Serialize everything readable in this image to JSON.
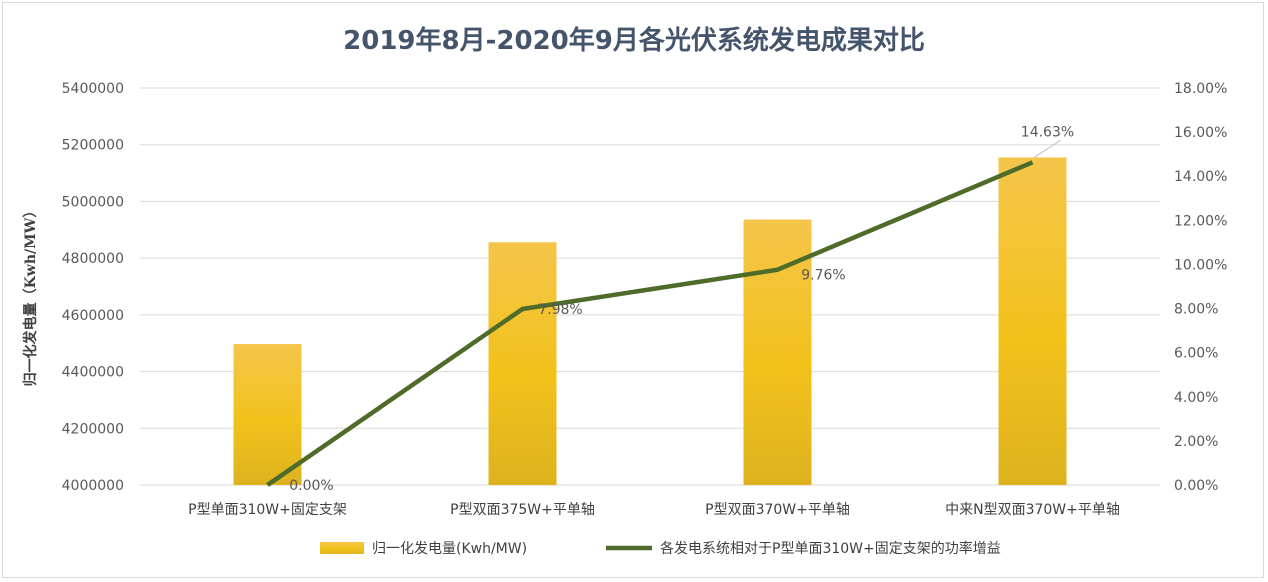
{
  "chart_data": {
    "type": "bar",
    "title": "2019年8月-2020年9月各光伏系统发电成果对比",
    "ylabel": "归一化发电量（Kwh/MW）",
    "y2label": "",
    "categories": [
      "P型单面310W+固定支架",
      "P型双面375W+平单轴",
      "P型双面370W+平单轴",
      "中来N型双面370W+平单轴"
    ],
    "ylim": [
      4000000,
      5400000
    ],
    "yticks": [
      "4000000",
      "4200000",
      "4400000",
      "4600000",
      "4800000",
      "5000000",
      "5200000",
      "5400000"
    ],
    "y2lim": [
      0,
      18
    ],
    "y2ticks": [
      "0.00%",
      "2.00%",
      "4.00%",
      "6.00%",
      "8.00%",
      "10.00%",
      "12.00%",
      "14.00%",
      "16.00%",
      "18.00%"
    ],
    "series": [
      {
        "name": "归一化发电量(Kwh/MW)",
        "type": "bar",
        "axis": "left",
        "values": [
          4497000,
          4856000,
          4936000,
          5155000
        ],
        "color": "#f2c21b"
      },
      {
        "name": "各发电系统相对于P型单面310W+固定支架的功率增益",
        "type": "line",
        "axis": "right",
        "values": [
          0.0,
          7.98,
          9.76,
          14.63
        ],
        "labels": [
          "0.00%",
          "7.98%",
          "9.76%",
          "14.63%"
        ],
        "color": "#4e6b2a"
      }
    ],
    "grid": true,
    "legend": "bottom"
  }
}
